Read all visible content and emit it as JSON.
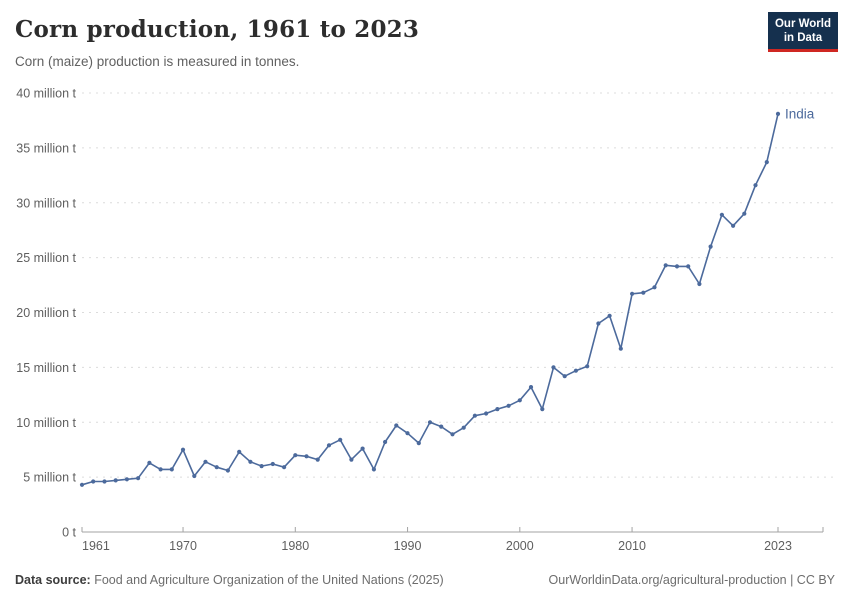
{
  "header": {
    "title": "Corn production, 1961 to 2023",
    "subtitle": "Corn (maize) production is measured in tonnes.",
    "logo": {
      "line1": "Our World",
      "line2": "in Data",
      "bg_color": "#15304e",
      "accent_color": "#cf2722"
    }
  },
  "chart_data": {
    "type": "line",
    "title": "Corn production, 1961 to 2023",
    "xlabel": "",
    "ylabel": "",
    "unit": "million tonnes",
    "xlim": [
      1961,
      2023
    ],
    "ylim": [
      0,
      40
    ],
    "grid": "dashed horizontal",
    "legend_position": "end-of-line label",
    "x_ticks": [
      1961,
      1970,
      1980,
      1990,
      2000,
      2010,
      2023
    ],
    "y_ticks": [
      {
        "value": 0,
        "label": "0 t"
      },
      {
        "value": 5,
        "label": "5 million t"
      },
      {
        "value": 10,
        "label": "10 million t"
      },
      {
        "value": 15,
        "label": "15 million t"
      },
      {
        "value": 20,
        "label": "20 million t"
      },
      {
        "value": 25,
        "label": "25 million t"
      },
      {
        "value": 30,
        "label": "30 million t"
      },
      {
        "value": 35,
        "label": "35 million t"
      },
      {
        "value": 40,
        "label": "40 million t"
      }
    ],
    "series": [
      {
        "name": "India",
        "color": "#4C6A9C",
        "x": [
          1961,
          1962,
          1963,
          1964,
          1965,
          1966,
          1967,
          1968,
          1969,
          1970,
          1971,
          1972,
          1973,
          1974,
          1975,
          1976,
          1977,
          1978,
          1979,
          1980,
          1981,
          1982,
          1983,
          1984,
          1985,
          1986,
          1987,
          1988,
          1989,
          1990,
          1991,
          1992,
          1993,
          1994,
          1995,
          1996,
          1997,
          1998,
          1999,
          2000,
          2001,
          2002,
          2003,
          2004,
          2005,
          2006,
          2007,
          2008,
          2009,
          2010,
          2011,
          2012,
          2013,
          2014,
          2015,
          2016,
          2017,
          2018,
          2019,
          2020,
          2021,
          2022,
          2023
        ],
        "values": [
          4.3,
          4.6,
          4.6,
          4.7,
          4.8,
          4.9,
          6.3,
          5.7,
          5.7,
          7.5,
          5.1,
          6.4,
          5.9,
          5.6,
          7.3,
          6.4,
          6.0,
          6.2,
          5.9,
          7.0,
          6.9,
          6.6,
          7.9,
          8.4,
          6.6,
          7.6,
          5.7,
          8.2,
          9.7,
          9.0,
          8.1,
          10.0,
          9.6,
          8.9,
          9.5,
          10.6,
          10.8,
          11.2,
          11.5,
          12.0,
          13.2,
          11.2,
          15.0,
          14.2,
          14.7,
          15.1,
          19.0,
          19.7,
          16.7,
          21.7,
          21.8,
          22.3,
          24.3,
          24.2,
          24.2,
          22.6,
          26.0,
          28.9,
          27.9,
          29.0,
          31.6,
          33.7,
          38.1
        ]
      }
    ]
  },
  "footer": {
    "data_source_label": "Data source:",
    "data_source_text": " Food and Agriculture Organization of the United Nations (2025)",
    "credit": "OurWorldinData.org/agricultural-production | CC BY"
  }
}
